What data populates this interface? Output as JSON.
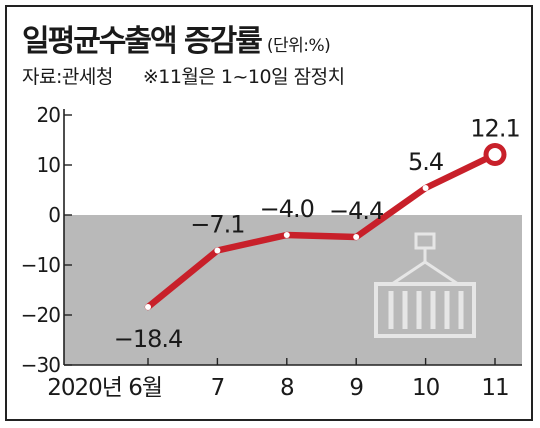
{
  "title": "일평균수출액 증감률",
  "unit": "(단위:%)",
  "source": "자료:관세청",
  "note": "※11월은 1~10일 잠정치",
  "colors": {
    "line": "#c8202a",
    "negative_band": "#b9b9b9",
    "axis": "#222222",
    "text": "#1a1a1a"
  },
  "icon": "shipping-container-crane-icon",
  "chart_data": {
    "type": "line",
    "title": "일평균수출액 증감률",
    "unit": "%",
    "x_labels": [
      "2020년 6월",
      "7",
      "8",
      "9",
      "10",
      "11"
    ],
    "values": [
      -18.4,
      -7.1,
      -4.0,
      -4.4,
      5.4,
      12.1
    ],
    "data_labels": [
      "−18.4",
      "−7.1",
      "−4.0",
      "−4.4",
      "5.4",
      "12.1"
    ],
    "yticks": [
      "20",
      "10",
      "0",
      "−10",
      "−20",
      "−30"
    ],
    "ytick_values": [
      20,
      10,
      0,
      -10,
      -20,
      -30
    ],
    "ylim": [
      -30,
      20
    ],
    "grid": false,
    "negative_region_shaded": true,
    "last_point_highlighted": true
  }
}
